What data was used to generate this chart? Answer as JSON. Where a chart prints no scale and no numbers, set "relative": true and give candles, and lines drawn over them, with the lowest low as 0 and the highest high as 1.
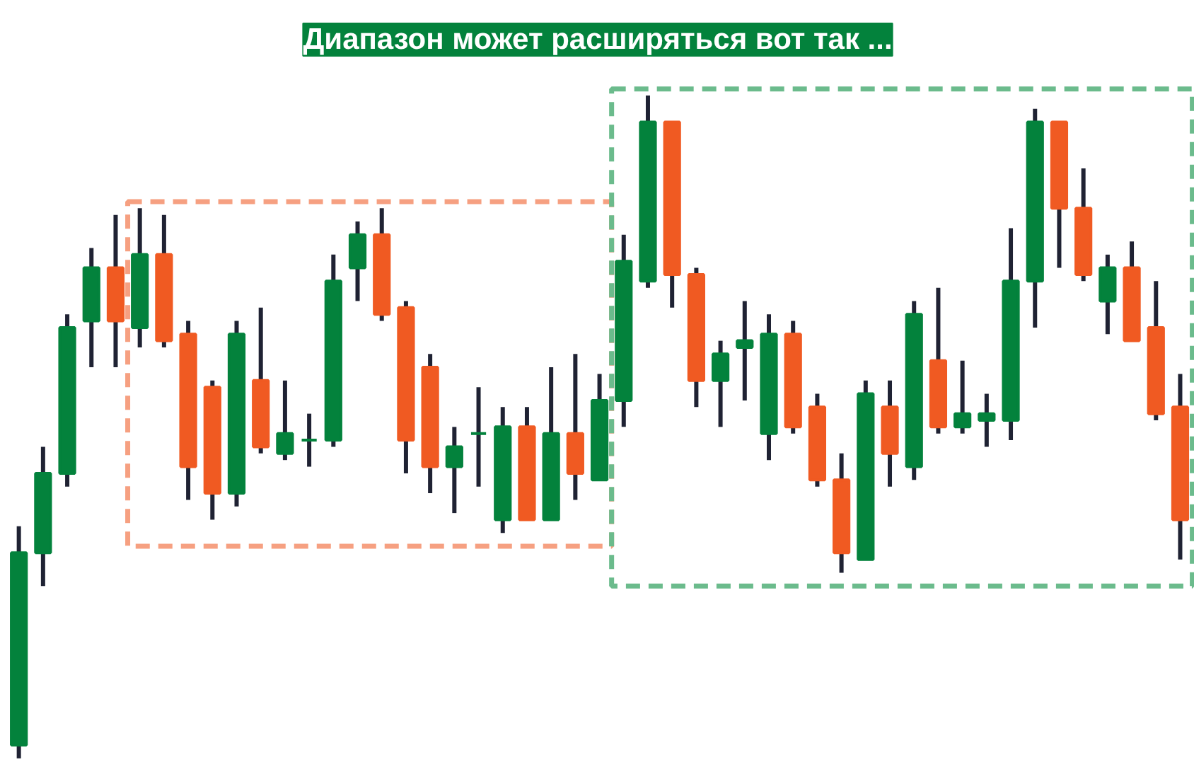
{
  "chart_data": {
    "type": "candlestick",
    "title": "Диапазон может расширяться вот так ...",
    "relative": true,
    "categories": [
      null,
      null,
      null,
      null,
      null,
      null,
      null,
      null,
      null,
      null,
      null,
      null,
      null,
      null,
      null,
      null,
      null,
      null,
      null,
      null,
      null,
      null,
      null,
      null,
      null,
      null,
      null,
      null,
      null,
      null,
      null,
      null,
      null,
      null,
      null,
      null,
      null,
      null,
      null,
      null,
      null,
      null,
      null,
      null,
      null,
      null,
      null,
      null,
      null
    ],
    "ohlc": [
      [
        0.02,
        0.35,
        0,
        0.31
      ],
      [
        0.31,
        0.47,
        0.26,
        0.43
      ],
      [
        0.43,
        0.67,
        0.41,
        0.65
      ],
      [
        0.66,
        0.77,
        0.59,
        0.74
      ],
      [
        0.74,
        0.82,
        0.59,
        0.66
      ],
      [
        0.65,
        0.83,
        0.62,
        0.76
      ],
      [
        0.76,
        0.82,
        0.62,
        0.63
      ],
      [
        0.64,
        0.66,
        0.39,
        0.44
      ],
      [
        0.56,
        0.57,
        0.36,
        0.4
      ],
      [
        0.4,
        0.66,
        0.38,
        0.64
      ],
      [
        0.57,
        0.68,
        0.46,
        0.47
      ],
      [
        0.46,
        0.57,
        0.45,
        0.49
      ],
      [
        0.48,
        0.52,
        0.44,
        0.48
      ],
      [
        0.48,
        0.76,
        0.47,
        0.72
      ],
      [
        0.74,
        0.81,
        0.69,
        0.79
      ],
      [
        0.79,
        0.83,
        0.66,
        0.67
      ],
      [
        0.68,
        0.69,
        0.43,
        0.48
      ],
      [
        0.59,
        0.61,
        0.4,
        0.44
      ],
      [
        0.44,
        0.5,
        0.37,
        0.47
      ],
      [
        0.49,
        0.56,
        0.41,
        0.49
      ],
      [
        0.36,
        0.53,
        0.34,
        0.5
      ],
      [
        0.5,
        0.53,
        0.36,
        0.36
      ],
      [
        0.36,
        0.59,
        0.36,
        0.49
      ],
      [
        0.49,
        0.61,
        0.39,
        0.43
      ],
      [
        0.42,
        0.58,
        0.42,
        0.54
      ],
      [
        0.54,
        0.79,
        0.5,
        0.75
      ],
      [
        0.72,
        1.0,
        0.71,
        0.96
      ],
      [
        0.96,
        0.96,
        0.68,
        0.73
      ],
      [
        0.73,
        0.74,
        0.53,
        0.57
      ],
      [
        0.57,
        0.63,
        0.5,
        0.61
      ],
      [
        0.62,
        0.69,
        0.54,
        0.63
      ],
      [
        0.49,
        0.67,
        0.45,
        0.64
      ],
      [
        0.64,
        0.66,
        0.49,
        0.5
      ],
      [
        0.53,
        0.55,
        0.41,
        0.42
      ],
      [
        0.42,
        0.46,
        0.28,
        0.31
      ],
      [
        0.3,
        0.57,
        0.3,
        0.55
      ],
      [
        0.53,
        0.57,
        0.41,
        0.46
      ],
      [
        0.44,
        0.69,
        0.42,
        0.67
      ],
      [
        0.6,
        0.71,
        0.49,
        0.5
      ],
      [
        0.5,
        0.6,
        0.49,
        0.52
      ],
      [
        0.51,
        0.55,
        0.47,
        0.52
      ],
      [
        0.51,
        0.8,
        0.48,
        0.72
      ],
      [
        0.72,
        0.98,
        0.65,
        0.96
      ],
      [
        0.96,
        0.96,
        0.74,
        0.83
      ],
      [
        0.83,
        0.89,
        0.72,
        0.73
      ],
      [
        0.69,
        0.76,
        0.64,
        0.74
      ],
      [
        0.74,
        0.78,
        0.63,
        0.63
      ],
      [
        0.65,
        0.72,
        0.51,
        0.52
      ],
      [
        0.53,
        0.58,
        0.3,
        0.36
      ]
    ],
    "colors": [
      "#03823c",
      "#03823c",
      "#03823c",
      "#03823c",
      "#f05a22",
      "#03823c",
      "#f05a22",
      "#f05a22",
      "#f05a22",
      "#03823c",
      "#f05a22",
      "#03823c",
      "#03823c",
      "#03823c",
      "#03823c",
      "#f05a22",
      "#f05a22",
      "#f05a22",
      "#03823c",
      "#03823c",
      "#03823c",
      "#f05a22",
      "#03823c",
      "#f05a22",
      "#03823c",
      "#03823c",
      "#03823c",
      "#f05a22",
      "#f05a22",
      "#03823c",
      "#03823c",
      "#03823c",
      "#f05a22",
      "#f05a22",
      "#f05a22",
      "#03823c",
      "#f05a22",
      "#03823c",
      "#f05a22",
      "#03823c",
      "#03823c",
      "#03823c",
      "#03823c",
      "#f05a22",
      "#f05a22",
      "#03823c",
      "#f05a22",
      "#f05a22",
      "#f05a22"
    ]
  }
}
